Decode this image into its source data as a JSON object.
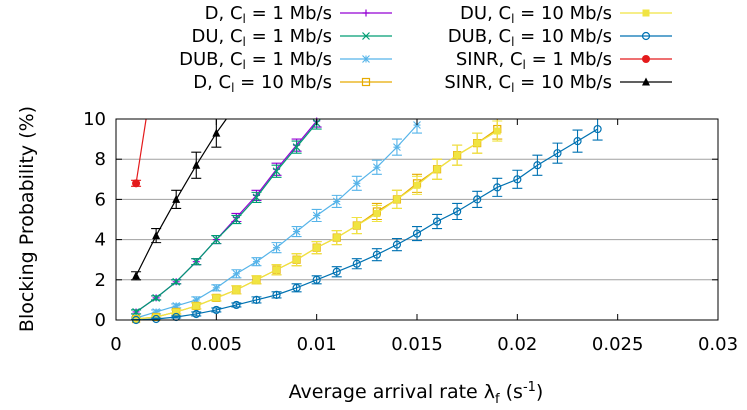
{
  "chart_data": {
    "type": "line",
    "xlabel_main": "Average arrival rate λ",
    "xlabel_sub": "f",
    "xlabel_unit_pre": " (s",
    "xlabel_unit_sup": "-1",
    "xlabel_unit_post": ")",
    "ylabel": "Blocking Probability (%)",
    "xlim": [
      0,
      0.03
    ],
    "ylim": [
      0,
      10
    ],
    "x_ticks": [
      0,
      0.005,
      0.01,
      0.015,
      0.02,
      0.025,
      0.03
    ],
    "x_tick_labels": [
      "0",
      "0.005",
      "0.01",
      "0.015",
      "0.02",
      "0.025",
      "0.03"
    ],
    "y_ticks": [
      0,
      2,
      4,
      6,
      8,
      10
    ],
    "y_tick_labels": [
      "0",
      "2",
      "4",
      "6",
      "8",
      "10"
    ],
    "grid": "horizontal",
    "legend_position": "top",
    "series": [
      {
        "name": "D, Cl = 1 Mb/s",
        "label_pre": "D, C",
        "label_sub": "l",
        "label_post": " = 1 Mb/s",
        "color": "#9400d3",
        "marker": "plus",
        "x": [
          0.001,
          0.002,
          0.003,
          0.004,
          0.005,
          0.006,
          0.007,
          0.008,
          0.009,
          0.01
        ],
        "y": [
          0.4,
          1.1,
          1.9,
          2.9,
          4.0,
          5.1,
          6.2,
          7.5,
          8.7,
          9.9
        ],
        "err": [
          0.1,
          0.1,
          0.1,
          0.15,
          0.2,
          0.2,
          0.25,
          0.3,
          0.3,
          0.3
        ]
      },
      {
        "name": "DU, Cl = 1 Mb/s",
        "label_pre": "DU, C",
        "label_sub": "l",
        "label_post": " = 1 Mb/s",
        "color": "#009e73",
        "marker": "cross",
        "x": [
          0.001,
          0.002,
          0.003,
          0.004,
          0.005,
          0.006,
          0.007,
          0.008,
          0.009,
          0.01
        ],
        "y": [
          0.4,
          1.1,
          1.9,
          2.9,
          4.0,
          5.0,
          6.1,
          7.4,
          8.6,
          9.8
        ],
        "err": [
          0.1,
          0.1,
          0.1,
          0.15,
          0.2,
          0.2,
          0.25,
          0.3,
          0.3,
          0.3
        ]
      },
      {
        "name": "DUB, Cl = 1 Mb/s",
        "label_pre": "DUB, C",
        "label_sub": "l",
        "label_post": " = 1 Mb/s",
        "color": "#56b4e9",
        "marker": "star",
        "x": [
          0.001,
          0.002,
          0.003,
          0.004,
          0.005,
          0.006,
          0.007,
          0.008,
          0.009,
          0.01,
          0.011,
          0.012,
          0.013,
          0.014,
          0.015
        ],
        "y": [
          0.1,
          0.4,
          0.7,
          1.0,
          1.6,
          2.3,
          2.9,
          3.6,
          4.4,
          5.2,
          5.9,
          6.8,
          7.6,
          8.6,
          9.7
        ],
        "err": [
          0.05,
          0.1,
          0.1,
          0.15,
          0.15,
          0.2,
          0.2,
          0.25,
          0.25,
          0.3,
          0.3,
          0.35,
          0.35,
          0.4,
          0.4
        ]
      },
      {
        "name": "D, Cl = 10 Mb/s",
        "label_pre": "D, C",
        "label_sub": "l",
        "label_post": " = 10 Mb/s",
        "color": "#e6ab02",
        "marker": "box",
        "x": [
          0.001,
          0.002,
          0.003,
          0.004,
          0.005,
          0.006,
          0.007,
          0.008,
          0.009,
          0.01,
          0.011,
          0.012,
          0.013,
          0.014,
          0.015,
          0.016,
          0.017,
          0.018,
          0.019
        ],
        "y": [
          0.05,
          0.15,
          0.4,
          0.7,
          1.1,
          1.5,
          2.0,
          2.5,
          3.0,
          3.6,
          4.1,
          4.7,
          5.4,
          6.0,
          6.8,
          7.5,
          8.2,
          8.8,
          9.5
        ],
        "err": [
          0.05,
          0.05,
          0.1,
          0.15,
          0.15,
          0.2,
          0.2,
          0.25,
          0.3,
          0.3,
          0.35,
          0.4,
          0.4,
          0.45,
          0.45,
          0.5,
          0.5,
          0.5,
          0.5
        ]
      },
      {
        "name": "DU, Cl = 10 Mb/s",
        "label_pre": "DU, C",
        "label_sub": "l",
        "label_post": " = 10 Mb/s",
        "color": "#f0e442",
        "marker": "filledbox",
        "x": [
          0.001,
          0.002,
          0.003,
          0.004,
          0.005,
          0.006,
          0.007,
          0.008,
          0.009,
          0.01,
          0.011,
          0.012,
          0.013,
          0.014,
          0.015,
          0.016,
          0.017,
          0.018,
          0.019
        ],
        "y": [
          0.05,
          0.15,
          0.4,
          0.7,
          1.1,
          1.5,
          2.0,
          2.5,
          3.0,
          3.6,
          4.1,
          4.7,
          5.3,
          6.0,
          6.7,
          7.5,
          8.2,
          8.8,
          9.4
        ],
        "err": [
          0.05,
          0.05,
          0.1,
          0.15,
          0.15,
          0.2,
          0.2,
          0.25,
          0.3,
          0.3,
          0.35,
          0.4,
          0.4,
          0.45,
          0.45,
          0.5,
          0.5,
          0.5,
          0.5
        ]
      },
      {
        "name": "DUB, Cl = 10 Mb/s",
        "label_pre": "DUB, C",
        "label_sub": "l",
        "label_post": " = 10 Mb/s",
        "color": "#0072b2",
        "marker": "circle",
        "x": [
          0.001,
          0.002,
          0.003,
          0.004,
          0.005,
          0.006,
          0.007,
          0.008,
          0.009,
          0.01,
          0.011,
          0.012,
          0.013,
          0.014,
          0.015,
          0.016,
          0.017,
          0.018,
          0.019,
          0.02,
          0.021,
          0.022,
          0.023,
          0.024
        ],
        "y": [
          0.0,
          0.05,
          0.15,
          0.3,
          0.5,
          0.75,
          1.0,
          1.25,
          1.6,
          2.0,
          2.4,
          2.8,
          3.25,
          3.75,
          4.3,
          4.9,
          5.4,
          6.0,
          6.6,
          7.0,
          7.7,
          8.3,
          8.9,
          9.5
        ],
        "err": [
          0.02,
          0.05,
          0.05,
          0.1,
          0.1,
          0.1,
          0.15,
          0.15,
          0.2,
          0.2,
          0.25,
          0.25,
          0.3,
          0.3,
          0.35,
          0.35,
          0.4,
          0.4,
          0.45,
          0.45,
          0.5,
          0.5,
          0.55,
          0.55
        ]
      },
      {
        "name": "SINR, Cl = 1 Mb/s",
        "label_pre": "SINR, C",
        "label_sub": "l",
        "label_post": " = 1 Mb/s",
        "color": "#e41a1c",
        "marker": "filledcircle",
        "x": [
          0.001,
          0.0015
        ],
        "y": [
          6.8,
          10.0
        ],
        "err": [
          0.15,
          0
        ]
      },
      {
        "name": "SINR, Cl = 10 Mb/s",
        "label_pre": "SINR, C",
        "label_sub": "l",
        "label_post": " = 10 Mb/s",
        "color": "#000000",
        "marker": "triangle",
        "x": [
          0.001,
          0.002,
          0.003,
          0.004,
          0.005,
          0.0055
        ],
        "y": [
          2.2,
          4.2,
          6.0,
          7.7,
          9.3,
          10.0
        ],
        "err": [
          0.2,
          0.35,
          0.45,
          0.65,
          0.7,
          0
        ]
      }
    ]
  }
}
